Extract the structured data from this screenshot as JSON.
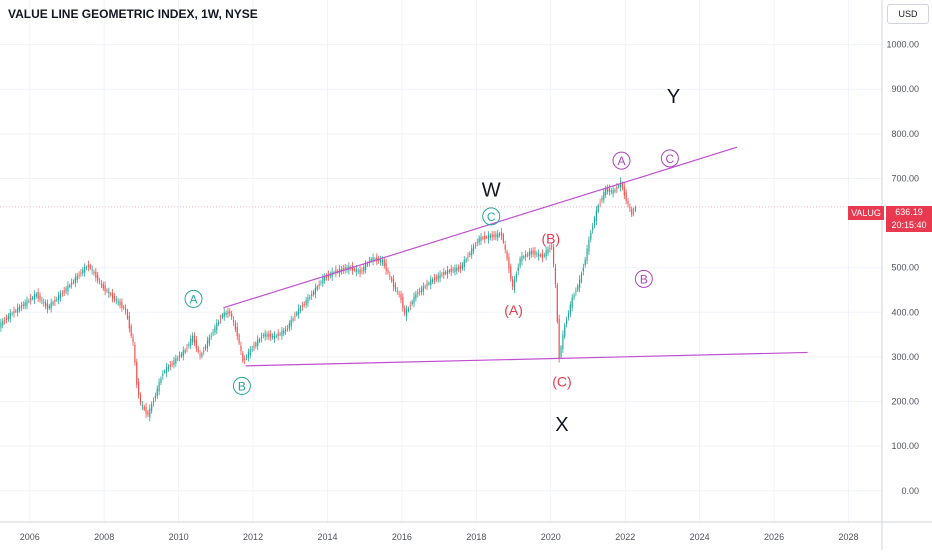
{
  "chart_data": {
    "type": "line",
    "title": "VALUE LINE GEOMETRIC INDEX, 1W, NYSE",
    "symbol": "VALUG",
    "currency": "USD",
    "last_price": "636.19",
    "countdown": "20:15:40",
    "x_ticks": [
      "2006",
      "2008",
      "2010",
      "2012",
      "2014",
      "2016",
      "2018",
      "2020",
      "2022",
      "2024",
      "2026",
      "2028"
    ],
    "y_ticks": [
      "1000.00",
      "900.00",
      "800.00",
      "700.00",
      "500.00",
      "400.00",
      "300.00",
      "200.00",
      "100.00",
      "0.00"
    ],
    "xlim": [
      2005.2,
      2028.9
    ],
    "ylim": [
      -70,
      1100
    ],
    "grid": true,
    "series": [
      {
        "values": [
          [
            2005.2,
            370
          ],
          [
            2005.5,
            395
          ],
          [
            2005.9,
            420
          ],
          [
            2006.2,
            440
          ],
          [
            2006.5,
            410
          ],
          [
            2006.8,
            435
          ],
          [
            2007.2,
            470
          ],
          [
            2007.4,
            490
          ],
          [
            2007.6,
            505
          ],
          [
            2007.8,
            480
          ],
          [
            2008.0,
            455
          ],
          [
            2008.3,
            430
          ],
          [
            2008.6,
            405
          ],
          [
            2008.8,
            330
          ],
          [
            2008.9,
            240
          ],
          [
            2009.0,
            195
          ],
          [
            2009.2,
            170
          ],
          [
            2009.4,
            215
          ],
          [
            2009.6,
            265
          ],
          [
            2009.9,
            290
          ],
          [
            2010.2,
            315
          ],
          [
            2010.4,
            345
          ],
          [
            2010.6,
            300
          ],
          [
            2010.9,
            350
          ],
          [
            2011.2,
            395
          ],
          [
            2011.4,
            400
          ],
          [
            2011.6,
            350
          ],
          [
            2011.75,
            290
          ],
          [
            2012.0,
            320
          ],
          [
            2012.3,
            350
          ],
          [
            2012.6,
            345
          ],
          [
            2012.9,
            360
          ],
          [
            2013.2,
            400
          ],
          [
            2013.6,
            440
          ],
          [
            2013.9,
            475
          ],
          [
            2014.2,
            490
          ],
          [
            2014.6,
            500
          ],
          [
            2014.9,
            490
          ],
          [
            2015.2,
            520
          ],
          [
            2015.5,
            515
          ],
          [
            2015.8,
            460
          ],
          [
            2016.0,
            430
          ],
          [
            2016.1,
            395
          ],
          [
            2016.4,
            440
          ],
          [
            2016.8,
            470
          ],
          [
            2017.2,
            490
          ],
          [
            2017.6,
            500
          ],
          [
            2017.9,
            540
          ],
          [
            2018.1,
            565
          ],
          [
            2018.4,
            570
          ],
          [
            2018.7,
            575
          ],
          [
            2018.9,
            500
          ],
          [
            2019.0,
            455
          ],
          [
            2019.2,
            520
          ],
          [
            2019.5,
            535
          ],
          [
            2019.8,
            525
          ],
          [
            2020.05,
            550
          ],
          [
            2020.15,
            460
          ],
          [
            2020.25,
            300
          ],
          [
            2020.4,
            370
          ],
          [
            2020.6,
            430
          ],
          [
            2020.8,
            470
          ],
          [
            2020.95,
            520
          ],
          [
            2021.1,
            580
          ],
          [
            2021.3,
            640
          ],
          [
            2021.5,
            675
          ],
          [
            2021.7,
            670
          ],
          [
            2021.9,
            690
          ],
          [
            2022.0,
            665
          ],
          [
            2022.1,
            640
          ],
          [
            2022.2,
            620
          ],
          [
            2022.3,
            636
          ]
        ]
      }
    ],
    "trend_lines": [
      {
        "from": [
          2011.2,
          410
        ],
        "to": [
          2025.0,
          770
        ]
      },
      {
        "from": [
          2011.8,
          280
        ],
        "to": [
          2026.9,
          310
        ]
      }
    ],
    "annotations": [
      {
        "text": "W",
        "x": 2018.4,
        "y": 675,
        "color": "#131722",
        "style": "plain",
        "size": "large"
      },
      {
        "text": "X",
        "x": 2020.3,
        "y": 150,
        "color": "#131722",
        "style": "plain",
        "size": "large"
      },
      {
        "text": "Y",
        "x": 2023.3,
        "y": 885,
        "color": "#131722",
        "style": "plain",
        "size": "large"
      },
      {
        "text": "A",
        "x": 2010.4,
        "y": 430,
        "color": "#26a69a",
        "style": "circle"
      },
      {
        "text": "B",
        "x": 2011.7,
        "y": 235,
        "color": "#26a69a",
        "style": "circle"
      },
      {
        "text": "C",
        "x": 2018.4,
        "y": 615,
        "color": "#26a69a",
        "style": "circle"
      },
      {
        "text": "(A)",
        "x": 2019.0,
        "y": 405,
        "color": "#e8394f",
        "style": "plain"
      },
      {
        "text": "(B)",
        "x": 2020.0,
        "y": 565,
        "color": "#e8394f",
        "style": "plain"
      },
      {
        "text": "(C)",
        "x": 2020.3,
        "y": 245,
        "color": "#e8394f",
        "style": "plain"
      },
      {
        "text": "A",
        "x": 2021.9,
        "y": 740,
        "color": "#ab47bc",
        "style": "circle"
      },
      {
        "text": "B",
        "x": 2022.5,
        "y": 475,
        "color": "#ab47bc",
        "style": "circle"
      },
      {
        "text": "C",
        "x": 2023.2,
        "y": 745,
        "color": "#ab47bc",
        "style": "circle"
      }
    ],
    "colors": {
      "up": "#26a69a",
      "down": "#ef5350",
      "trend_line": "#c04fd0",
      "price_tag": "#e8394f",
      "grid": "#f0f3fa",
      "axis_text": "#50535e"
    }
  }
}
